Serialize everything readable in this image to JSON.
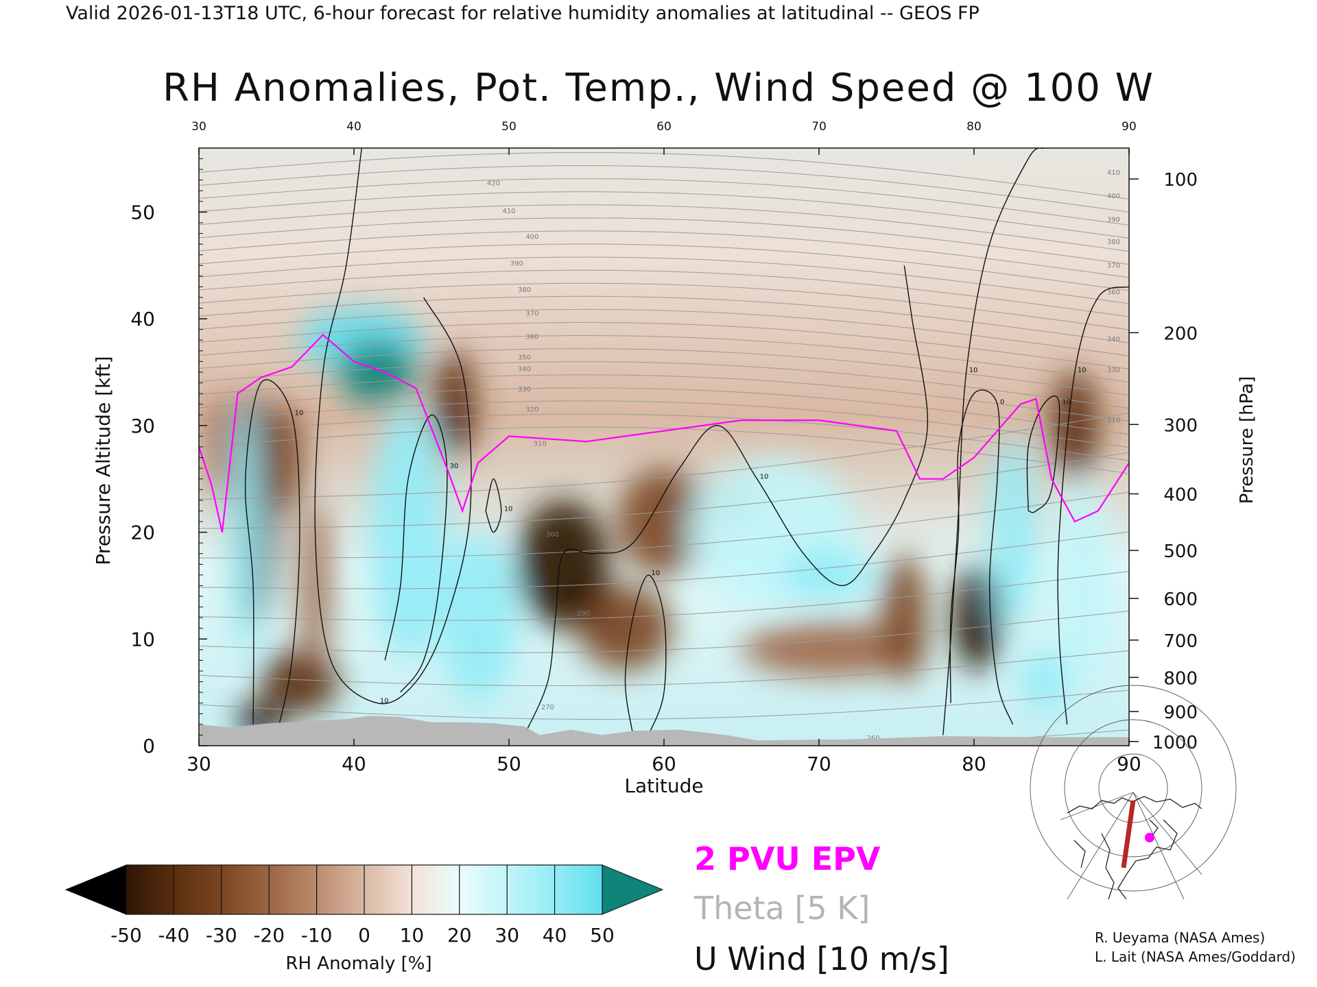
{
  "header": {
    "text": "Valid 2026-01-13T18 UTC, 6-hour forecast for relative humidity anomalies at latitudinal -- GEOS FP"
  },
  "chart_data": {
    "type": "heatmap",
    "title": "RH Anomalies, Pot. Temp., Wind Speed @ 100 W",
    "xlabel": "Latitude",
    "ylabel_left": "Pressure Altitude [kft]",
    "ylabel_right": "Pressure [hPa]",
    "xlim": [
      30,
      90
    ],
    "ylim": [
      0,
      56
    ],
    "x_ticks": [
      30,
      40,
      50,
      60,
      70,
      80,
      90
    ],
    "y_ticks_left": [
      0,
      10,
      20,
      30,
      40,
      50
    ],
    "pressure_ticks": [
      {
        "label": "100",
        "kft": 53.1
      },
      {
        "label": "200",
        "kft": 38.7
      },
      {
        "label": "300",
        "kft": 30.1
      },
      {
        "label": "400",
        "kft": 23.6
      },
      {
        "label": "500",
        "kft": 18.3
      },
      {
        "label": "600",
        "kft": 13.8
      },
      {
        "label": "700",
        "kft": 9.9
      },
      {
        "label": "800",
        "kft": 6.4
      },
      {
        "label": "900",
        "kft": 3.2
      },
      {
        "label": "1000",
        "kft": 0.4
      }
    ],
    "rh_anomaly_blobs": [
      {
        "lat": 33.5,
        "kft": 22,
        "rlat": 1.6,
        "rkft": 11,
        "value": -40
      },
      {
        "lat": 35.5,
        "kft": 27,
        "rlat": 1.2,
        "rkft": 5,
        "value": -30
      },
      {
        "lat": 36.5,
        "kft": 6,
        "rlat": 2.5,
        "rkft": 3,
        "value": -35
      },
      {
        "lat": 34.0,
        "kft": 2.5,
        "rlat": 1.5,
        "rkft": 1.5,
        "value": -50
      },
      {
        "lat": 31.5,
        "kft": 28,
        "rlat": 0.9,
        "rkft": 5,
        "value": -20
      },
      {
        "lat": 37.5,
        "kft": 15,
        "rlat": 1.0,
        "rkft": 8,
        "value": -15
      },
      {
        "lat": 40.5,
        "kft": 38,
        "rlat": 4.0,
        "rkft": 3,
        "value": 40
      },
      {
        "lat": 41.5,
        "kft": 35,
        "rlat": 2.5,
        "rkft": 3,
        "value": 50
      },
      {
        "lat": 43.5,
        "kft": 20,
        "rlat": 2.5,
        "rkft": 12,
        "value": 35
      },
      {
        "lat": 33.0,
        "kft": 20,
        "rlat": 1.0,
        "rkft": 12,
        "value": 30
      },
      {
        "lat": 46.5,
        "kft": 32,
        "rlat": 1.3,
        "rkft": 5,
        "value": -40
      },
      {
        "lat": 46.7,
        "kft": 30,
        "rlat": 0.5,
        "rkft": 1.2,
        "value": -50
      },
      {
        "lat": 48.0,
        "kft": 12,
        "rlat": 2.5,
        "rkft": 8,
        "value": 30
      },
      {
        "lat": 53.5,
        "kft": 17,
        "rlat": 3.0,
        "rkft": 6,
        "value": -45
      },
      {
        "lat": 55.5,
        "kft": 13,
        "rlat": 1.5,
        "rkft": 2.5,
        "value": -50
      },
      {
        "lat": 57.5,
        "kft": 11,
        "rlat": 3.0,
        "rkft": 4,
        "value": -30
      },
      {
        "lat": 60.0,
        "kft": 21,
        "rlat": 3.0,
        "rkft": 5,
        "value": -25
      },
      {
        "lat": 64.5,
        "kft": 23,
        "rlat": 1.3,
        "rkft": 2,
        "value": -12
      },
      {
        "lat": 67.0,
        "kft": 20,
        "rlat": 5.5,
        "rkft": 7,
        "value": 20
      },
      {
        "lat": 70.5,
        "kft": 16,
        "rlat": 3.0,
        "rkft": 2.5,
        "value": 30
      },
      {
        "lat": 71.0,
        "kft": 9,
        "rlat": 6.0,
        "rkft": 2.5,
        "value": -20
      },
      {
        "lat": 75.5,
        "kft": 12,
        "rlat": 1.5,
        "rkft": 6,
        "value": -25
      },
      {
        "lat": 80.2,
        "kft": 12,
        "rlat": 1.5,
        "rkft": 5,
        "value": -45
      },
      {
        "lat": 80.3,
        "kft": 10,
        "rlat": 0.6,
        "rkft": 1.5,
        "value": -50
      },
      {
        "lat": 82.5,
        "kft": 20,
        "rlat": 1.5,
        "rkft": 9,
        "value": 30
      },
      {
        "lat": 86.5,
        "kft": 30,
        "rlat": 1.5,
        "rkft": 5,
        "value": -40
      },
      {
        "lat": 87.0,
        "kft": 15,
        "rlat": 2.0,
        "rkft": 10,
        "value": 20
      },
      {
        "lat": 84.5,
        "kft": 6,
        "rlat": 1.5,
        "rkft": 3,
        "value": 35
      }
    ],
    "theta_levels": [
      270,
      275,
      280,
      285,
      290,
      295,
      300,
      305,
      310,
      315,
      320,
      325,
      330,
      335,
      340,
      345,
      350,
      355,
      360,
      365,
      370,
      375,
      380,
      385,
      390,
      395,
      400,
      405,
      410,
      415,
      420
    ],
    "theta_labels": [
      {
        "text": "420",
        "lat": 49.0,
        "kft": 52.5
      },
      {
        "text": "410",
        "lat": 50.0,
        "kft": 49.9
      },
      {
        "text": "400",
        "lat": 51.5,
        "kft": 47.5
      },
      {
        "text": "390",
        "lat": 50.5,
        "kft": 45.0
      },
      {
        "text": "380",
        "lat": 51.0,
        "kft": 42.5
      },
      {
        "text": "370",
        "lat": 51.5,
        "kft": 40.3
      },
      {
        "text": "360",
        "lat": 51.5,
        "kft": 38.1
      },
      {
        "text": "350",
        "lat": 51.0,
        "kft": 36.2
      },
      {
        "text": "340",
        "lat": 51.0,
        "kft": 35.1
      },
      {
        "text": "330",
        "lat": 51.0,
        "kft": 33.2
      },
      {
        "text": "320",
        "lat": 51.5,
        "kft": 31.3
      },
      {
        "text": "310",
        "lat": 52.0,
        "kft": 28.1
      },
      {
        "text": "300",
        "lat": 52.8,
        "kft": 19.6
      },
      {
        "text": "290",
        "lat": 54.8,
        "kft": 12.2
      },
      {
        "text": "270",
        "lat": 52.5,
        "kft": 3.4
      },
      {
        "text": "260",
        "lat": 73.5,
        "kft": 0.5
      },
      {
        "text": "410",
        "lat": 89.0,
        "kft": 53.5
      },
      {
        "text": "400",
        "lat": 89.0,
        "kft": 51.3
      },
      {
        "text": "390",
        "lat": 89.0,
        "kft": 49.1
      },
      {
        "text": "380",
        "lat": 89.0,
        "kft": 47.0
      },
      {
        "text": "370",
        "lat": 89.0,
        "kft": 44.8
      },
      {
        "text": "360",
        "lat": 89.0,
        "kft": 42.3
      },
      {
        "text": "340",
        "lat": 89.0,
        "kft": 37.9
      },
      {
        "text": "330",
        "lat": 89.0,
        "kft": 35.0
      },
      {
        "text": "310",
        "lat": 89.0,
        "kft": 30.3
      }
    ],
    "tropopause_2pvu": [
      {
        "lat": 30.0,
        "kft": 28.0
      },
      {
        "lat": 30.8,
        "kft": 24.5
      },
      {
        "lat": 31.5,
        "kft": 20.0
      },
      {
        "lat": 32.5,
        "kft": 33.0
      },
      {
        "lat": 34.0,
        "kft": 34.5
      },
      {
        "lat": 35.0,
        "kft": 35.0
      },
      {
        "lat": 36.0,
        "kft": 35.5
      },
      {
        "lat": 38.0,
        "kft": 38.5
      },
      {
        "lat": 40.0,
        "kft": 36.0
      },
      {
        "lat": 42.0,
        "kft": 35.0
      },
      {
        "lat": 44.0,
        "kft": 33.5
      },
      {
        "lat": 46.0,
        "kft": 26.0
      },
      {
        "lat": 47.0,
        "kft": 22.0
      },
      {
        "lat": 48.0,
        "kft": 26.5
      },
      {
        "lat": 50.0,
        "kft": 29.0
      },
      {
        "lat": 55.0,
        "kft": 28.5
      },
      {
        "lat": 60.0,
        "kft": 29.5
      },
      {
        "lat": 65.0,
        "kft": 30.5
      },
      {
        "lat": 70.0,
        "kft": 30.5
      },
      {
        "lat": 75.0,
        "kft": 29.5
      },
      {
        "lat": 76.5,
        "kft": 25.0
      },
      {
        "lat": 78.0,
        "kft": 25.0
      },
      {
        "lat": 80.0,
        "kft": 27.0
      },
      {
        "lat": 83.0,
        "kft": 32.0
      },
      {
        "lat": 84.0,
        "kft": 32.5
      },
      {
        "lat": 85.0,
        "kft": 25.0
      },
      {
        "lat": 86.5,
        "kft": 21.0
      },
      {
        "lat": 88.0,
        "kft": 22.0
      },
      {
        "lat": 90.0,
        "kft": 26.5
      }
    ],
    "uwind_contours": [
      {
        "label": "10",
        "points": [
          [
            33.5,
            2
          ],
          [
            33.5,
            15
          ],
          [
            33.0,
            25
          ],
          [
            34.0,
            34
          ],
          [
            36.0,
            31
          ],
          [
            36.5,
            20
          ],
          [
            36.0,
            8
          ],
          [
            35.0,
            1
          ]
        ]
      },
      {
        "label": "30",
        "points": [
          [
            42.0,
            8
          ],
          [
            43.0,
            15
          ],
          [
            43.5,
            25
          ],
          [
            45.0,
            31
          ],
          [
            46.0,
            26
          ],
          [
            45.5,
            15
          ],
          [
            44.5,
            8
          ],
          [
            43.0,
            5
          ]
        ]
      },
      {
        "label": "10",
        "points": [
          [
            40.5,
            56
          ],
          [
            39.5,
            45
          ],
          [
            38.0,
            35
          ],
          [
            37.5,
            20
          ],
          [
            38.5,
            8
          ],
          [
            41.5,
            4
          ],
          [
            44.0,
            6
          ],
          [
            46.0,
            12
          ],
          [
            47.5,
            22
          ],
          [
            47.0,
            35
          ],
          [
            44.5,
            42
          ]
        ]
      },
      {
        "label": "10",
        "points": [
          [
            48.5,
            22
          ],
          [
            49.0,
            25
          ],
          [
            49.5,
            22
          ],
          [
            49.0,
            20
          ],
          [
            48.5,
            22
          ]
        ]
      },
      {
        "label": "10",
        "points": [
          [
            51.0,
            1
          ],
          [
            52.5,
            6
          ],
          [
            53.0,
            12
          ],
          [
            53.5,
            18
          ],
          [
            55.5,
            18
          ],
          [
            58.0,
            19
          ],
          [
            61.0,
            26
          ],
          [
            63.5,
            30
          ],
          [
            66.0,
            25
          ],
          [
            69.0,
            18
          ],
          [
            71.5,
            15
          ],
          [
            73.5,
            18
          ],
          [
            75.5,
            23
          ],
          [
            77.0,
            30
          ],
          [
            76.0,
            40
          ],
          [
            75.5,
            45
          ]
        ]
      },
      {
        "label": "10",
        "points": [
          [
            58.0,
            1
          ],
          [
            57.5,
            6
          ],
          [
            58.0,
            12
          ],
          [
            59.0,
            16
          ],
          [
            60.0,
            12
          ],
          [
            60.0,
            5
          ],
          [
            59.0,
            1
          ]
        ]
      },
      {
        "label": "0",
        "points": [
          [
            78.5,
            4
          ],
          [
            78.5,
            12
          ],
          [
            79.0,
            20
          ],
          [
            79.0,
            28
          ],
          [
            80.0,
            33
          ],
          [
            81.5,
            32
          ],
          [
            81.5,
            25
          ],
          [
            81.0,
            15
          ],
          [
            81.5,
            6
          ],
          [
            82.5,
            2
          ]
        ]
      },
      {
        "label": "10",
        "points": [
          [
            78.0,
            1
          ],
          [
            78.5,
            10
          ],
          [
            79.0,
            22
          ],
          [
            79.5,
            35
          ],
          [
            81.0,
            47
          ],
          [
            83.5,
            55
          ],
          [
            84.5,
            56
          ]
        ]
      },
      {
        "label": "10",
        "points": [
          [
            86.0,
            2
          ],
          [
            85.5,
            10
          ],
          [
            85.5,
            20
          ],
          [
            86.5,
            35
          ],
          [
            88.0,
            42
          ],
          [
            90.0,
            43
          ]
        ]
      },
      {
        "label": "10",
        "points": [
          [
            83.5,
            22
          ],
          [
            83.5,
            28
          ],
          [
            84.5,
            32
          ],
          [
            85.5,
            32
          ],
          [
            85.0,
            24
          ],
          [
            84.0,
            22
          ],
          [
            83.5,
            22
          ]
        ]
      }
    ],
    "surface_profile_kft": [
      {
        "lat": 30.0,
        "kft": 2.0
      },
      {
        "lat": 32.0,
        "kft": 1.7
      },
      {
        "lat": 34.5,
        "kft": 2.1
      },
      {
        "lat": 37.0,
        "kft": 2.3
      },
      {
        "lat": 39.5,
        "kft": 2.5
      },
      {
        "lat": 41.0,
        "kft": 2.8
      },
      {
        "lat": 43.0,
        "kft": 2.7
      },
      {
        "lat": 45.0,
        "kft": 2.2
      },
      {
        "lat": 47.0,
        "kft": 2.2
      },
      {
        "lat": 49.0,
        "kft": 2.1
      },
      {
        "lat": 51.0,
        "kft": 1.8
      },
      {
        "lat": 52.0,
        "kft": 1.0
      },
      {
        "lat": 54.0,
        "kft": 1.5
      },
      {
        "lat": 56.0,
        "kft": 1.0
      },
      {
        "lat": 58.0,
        "kft": 1.4
      },
      {
        "lat": 61.0,
        "kft": 1.5
      },
      {
        "lat": 64.0,
        "kft": 1.0
      },
      {
        "lat": 66.0,
        "kft": 0.5
      },
      {
        "lat": 72.0,
        "kft": 0.6
      },
      {
        "lat": 78.0,
        "kft": 0.9
      },
      {
        "lat": 84.0,
        "kft": 0.8
      },
      {
        "lat": 90.0,
        "kft": 0.8
      }
    ],
    "colorbar": {
      "label": "RH Anomaly [%]",
      "tick_labels": [
        "-50",
        "-40",
        "-30",
        "-20",
        "-10",
        "0",
        "10",
        "20",
        "30",
        "40",
        "50"
      ],
      "colors": [
        "#000000",
        "#2e1505",
        "#5a2e0e",
        "#7c4622",
        "#9c6645",
        "#bb8b6e",
        "#d9b9a4",
        "#f2e3d8",
        "#eafcfb",
        "#c1f5f8",
        "#93ecf6",
        "#63def0",
        "#35cde6",
        "#16b3d3",
        "#0a90ad",
        "#0f8478"
      ]
    },
    "legend": [
      {
        "label": "2 PVU EPV",
        "color": "#ff00ff"
      },
      {
        "label": "Theta [5 K]",
        "color": "#b4b4b4"
      },
      {
        "label": "U Wind [10 m/s]",
        "color": "#111111"
      }
    ]
  },
  "map_inset": {
    "section_line_color": "#b42828",
    "marker_color": "#ff00ff",
    "marker_position": "right of section line"
  },
  "credits": [
    "R. Ueyama (NASA Ames)",
    "L. Lait (NASA Ames/Goddard)"
  ]
}
